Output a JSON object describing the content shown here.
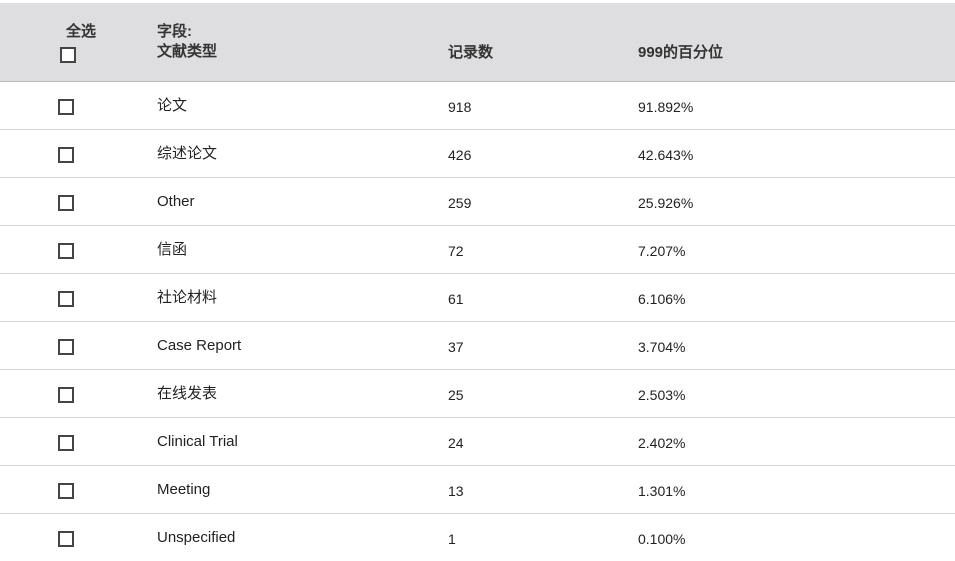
{
  "header": {
    "select_all_label": "全选",
    "field_label": "字段:",
    "field_name": "文献类型",
    "count_label": "记录数",
    "percent_label": "999的百分位"
  },
  "rows": [
    {
      "name": "论文",
      "count": "918",
      "percent": "91.892%",
      "checked": false
    },
    {
      "name": "综述论文",
      "count": "426",
      "percent": "42.643%",
      "checked": false
    },
    {
      "name": "Other",
      "count": "259",
      "percent": "25.926%",
      "checked": false
    },
    {
      "name": "信函",
      "count": "72",
      "percent": "7.207%",
      "checked": false
    },
    {
      "name": "社论材料",
      "count": "61",
      "percent": "6.106%",
      "checked": false
    },
    {
      "name": "Case Report",
      "count": "37",
      "percent": "3.704%",
      "checked": false
    },
    {
      "name": "在线发表",
      "count": "25",
      "percent": "2.503%",
      "checked": false
    },
    {
      "name": "Clinical Trial",
      "count": "24",
      "percent": "2.402%",
      "checked": false
    },
    {
      "name": "Meeting",
      "count": "13",
      "percent": "1.301%",
      "checked": false
    },
    {
      "name": "Unspecified",
      "count": "1",
      "percent": "0.100%",
      "checked": false
    }
  ]
}
